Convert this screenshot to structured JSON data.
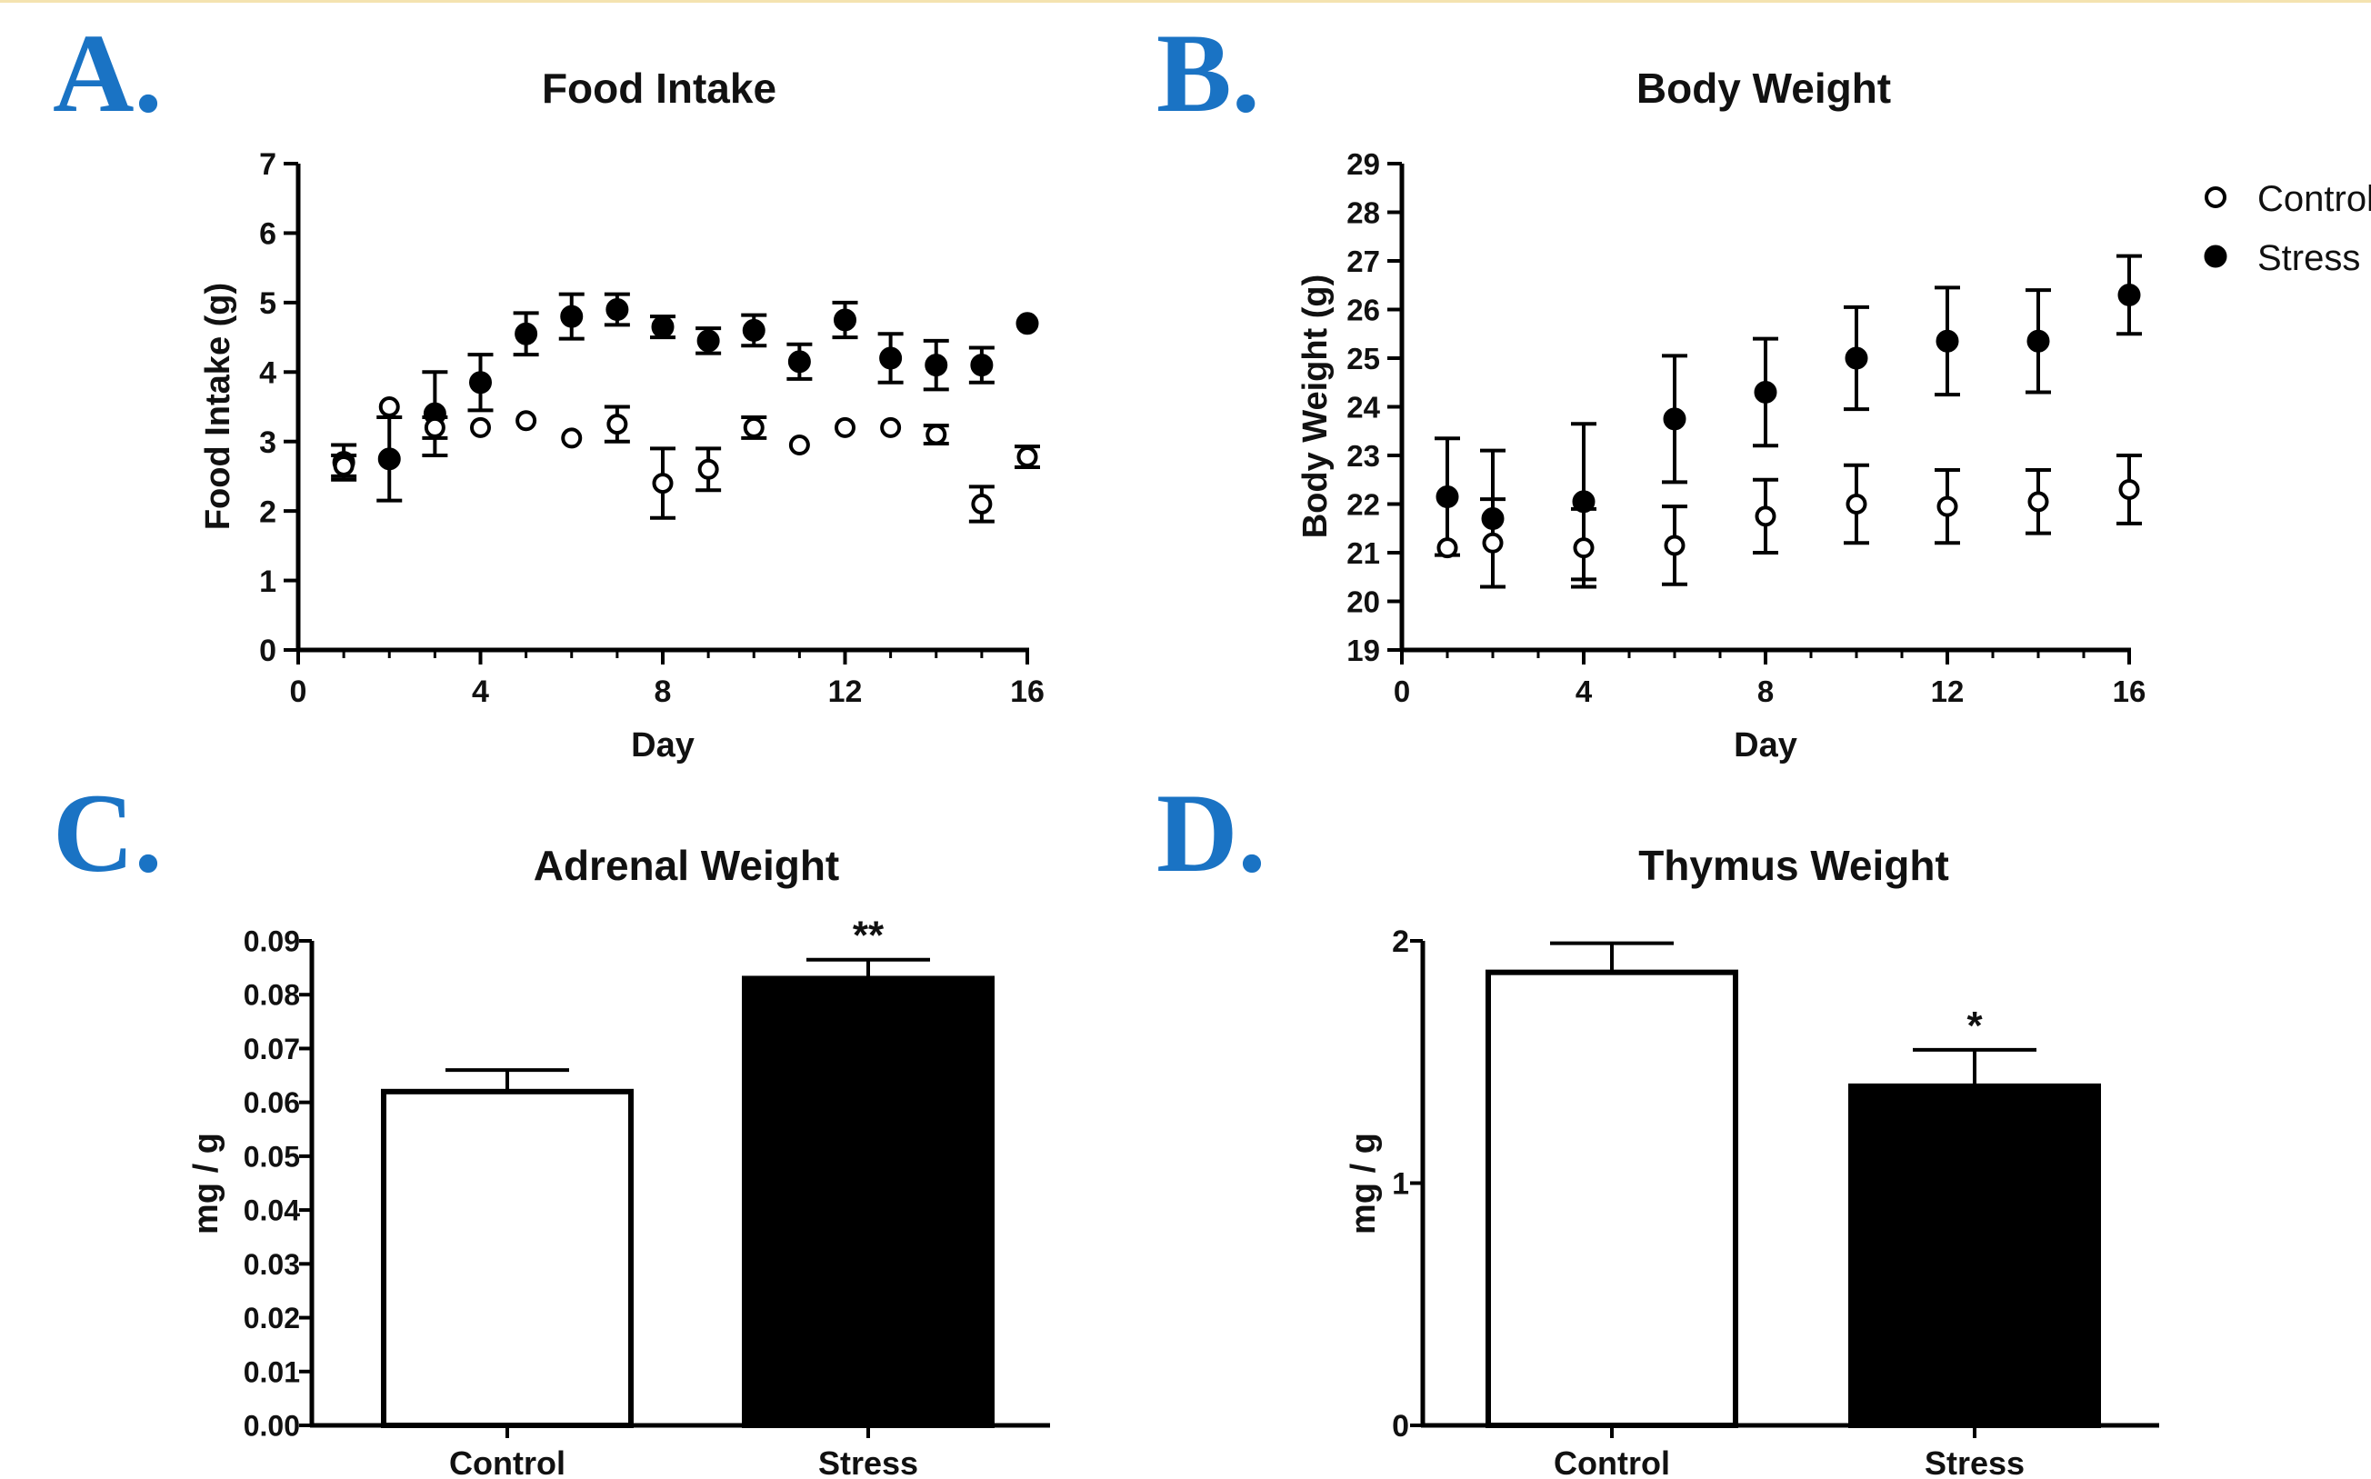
{
  "panels": {
    "a": {
      "label": "A."
    },
    "b": {
      "label": "B."
    },
    "c": {
      "label": "C."
    },
    "d": {
      "label": "D."
    }
  },
  "legend": {
    "items": [
      {
        "label": "Control",
        "marker": "open-circle"
      },
      {
        "label": "Stress",
        "marker": "filled-circle"
      }
    ]
  },
  "colors": {
    "panel_label": "#1a73c4",
    "ink": "#000000",
    "background": "#ffffff"
  },
  "chart_data": [
    {
      "id": "food-intake",
      "type": "scatter",
      "title": "Food Intake",
      "xlabel": "Day",
      "ylabel": "Food Intake (g)",
      "xlim": [
        0,
        16
      ],
      "ylim": [
        0,
        7
      ],
      "xticks": [
        "0",
        "4",
        "8",
        "12",
        "16"
      ],
      "yticks": [
        "0",
        "1",
        "2",
        "3",
        "4",
        "5",
        "6",
        "7"
      ],
      "series": [
        {
          "name": "Control",
          "marker": "open-circle",
          "x": [
            1,
            2,
            3,
            4,
            5,
            6,
            7,
            8,
            9,
            10,
            11,
            12,
            13,
            14,
            15,
            16
          ],
          "y": [
            2.65,
            3.5,
            3.2,
            3.2,
            3.3,
            3.05,
            3.25,
            2.4,
            2.6,
            3.2,
            2.95,
            3.2,
            3.2,
            3.1,
            2.1,
            2.78
          ],
          "err": [
            0.15,
            0,
            0.15,
            0,
            0,
            0,
            0.25,
            0.5,
            0.3,
            0.15,
            0,
            0,
            0,
            0.13,
            0.25,
            0.15
          ]
        },
        {
          "name": "Stress",
          "marker": "filled-circle",
          "x": [
            1,
            2,
            3,
            4,
            5,
            6,
            7,
            8,
            9,
            10,
            11,
            12,
            13,
            14,
            15,
            16
          ],
          "y": [
            2.7,
            2.75,
            3.4,
            3.85,
            4.55,
            4.8,
            4.9,
            4.65,
            4.45,
            4.6,
            4.15,
            4.75,
            4.2,
            4.1,
            4.1,
            4.7
          ],
          "err": [
            0.25,
            0.6,
            0.6,
            0.4,
            0.3,
            0.32,
            0.22,
            0.15,
            0.18,
            0.22,
            0.25,
            0.25,
            0.35,
            0.35,
            0.25,
            0
          ]
        }
      ]
    },
    {
      "id": "body-weight",
      "type": "scatter",
      "title": "Body Weight",
      "xlabel": "Day",
      "ylabel": "Body Weight (g)",
      "xlim": [
        0,
        16
      ],
      "ylim": [
        19,
        29
      ],
      "xticks": [
        "0",
        "4",
        "8",
        "12",
        "16"
      ],
      "yticks": [
        "19",
        "20",
        "21",
        "22",
        "23",
        "24",
        "25",
        "26",
        "27",
        "28",
        "29"
      ],
      "series": [
        {
          "name": "Control",
          "marker": "open-circle",
          "x": [
            1,
            2,
            4,
            6,
            8,
            10,
            12,
            14,
            16
          ],
          "y": [
            21.1,
            21.2,
            21.1,
            21.15,
            21.75,
            22.0,
            21.95,
            22.05,
            22.3
          ],
          "err": [
            0,
            0.9,
            0.8,
            0.8,
            0.75,
            0.8,
            0.75,
            0.65,
            0.7
          ]
        },
        {
          "name": "Stress",
          "marker": "filled-circle",
          "x": [
            1,
            2,
            4,
            6,
            8,
            10,
            12,
            14,
            16
          ],
          "y": [
            22.15,
            21.7,
            22.05,
            23.75,
            24.3,
            25.0,
            25.35,
            25.35,
            26.3
          ],
          "err": [
            1.2,
            1.4,
            1.6,
            1.3,
            1.1,
            1.05,
            1.1,
            1.05,
            0.8
          ]
        }
      ]
    },
    {
      "id": "adrenal-weight",
      "type": "bar",
      "title": "Adrenal Weight",
      "ylabel": "mg / g",
      "ylim": [
        0,
        0.09
      ],
      "yticks": [
        "0.00",
        "0.01",
        "0.02",
        "0.03",
        "0.04",
        "0.05",
        "0.06",
        "0.07",
        "0.08",
        "0.09"
      ],
      "categories": [
        "Control",
        "Stress"
      ],
      "values": [
        0.062,
        0.083
      ],
      "errors": [
        0.004,
        0.0035
      ],
      "fills": [
        "open",
        "filled"
      ],
      "annotations": [
        "",
        "**"
      ]
    },
    {
      "id": "thymus-weight",
      "type": "bar",
      "title": "Thymus Weight",
      "ylabel": "mg / g",
      "ylim": [
        0,
        2
      ],
      "yticks": [
        "0",
        "1",
        "2"
      ],
      "categories": [
        "Control",
        "Stress"
      ],
      "values": [
        1.87,
        1.4
      ],
      "errors": [
        0.12,
        0.15
      ],
      "fills": [
        "open",
        "filled"
      ],
      "annotations": [
        "",
        "*"
      ]
    }
  ]
}
